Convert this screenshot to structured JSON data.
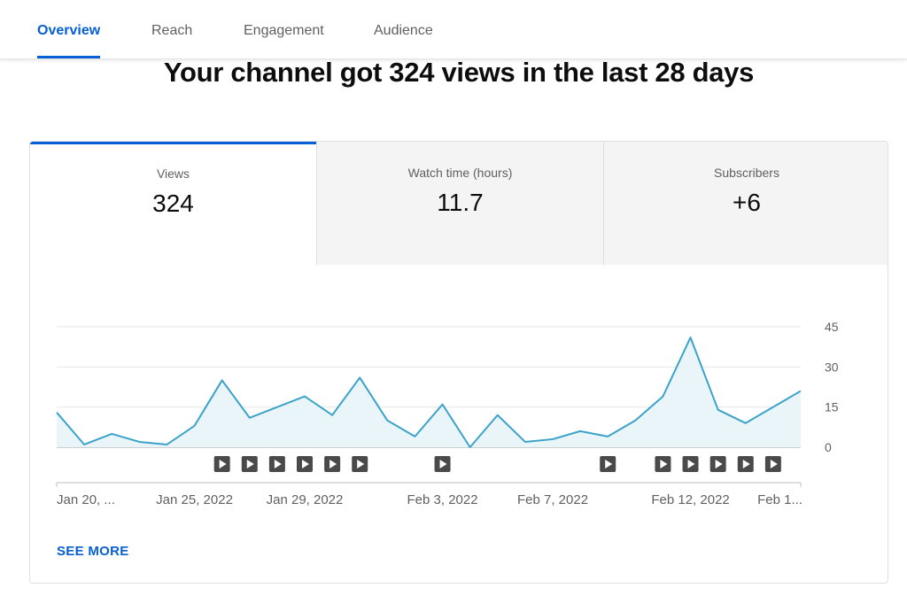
{
  "tabs": [
    {
      "label": "Overview",
      "active": true
    },
    {
      "label": "Reach",
      "active": false
    },
    {
      "label": "Engagement",
      "active": false
    },
    {
      "label": "Audience",
      "active": false
    }
  ],
  "headline": "Your channel got 324 views in the last 28 days",
  "metrics": [
    {
      "label": "Views",
      "value": "324",
      "active": true
    },
    {
      "label": "Watch time (hours)",
      "value": "11.7",
      "active": false
    },
    {
      "label": "Subscribers",
      "value": "+6",
      "active": false
    }
  ],
  "see_more": "SEE MORE",
  "colors": {
    "accent": "#065fd4",
    "line": "#3ba3c9",
    "area": "#e9f5f9",
    "marker": "#4a4a4a"
  },
  "chart_data": {
    "type": "area",
    "x_ticks": [
      "Jan 20, ...",
      "Jan 25, 2022",
      "Jan 29, 2022",
      "Feb 3, 2022",
      "Feb 7, 2022",
      "Feb 12, 2022",
      "Feb 1..."
    ],
    "y_ticks": [
      0,
      15,
      30,
      45
    ],
    "ylim": [
      0,
      45
    ],
    "grid": true,
    "values": [
      13,
      1,
      5,
      2,
      1,
      8,
      25,
      11,
      15,
      19,
      12,
      26,
      10,
      4,
      16,
      0,
      12,
      2,
      3,
      6,
      4,
      10,
      19,
      41,
      14,
      9,
      15,
      21
    ],
    "video_markers": [
      6,
      7,
      8,
      9,
      10,
      11,
      14,
      20,
      22,
      23,
      24,
      25,
      26
    ]
  }
}
